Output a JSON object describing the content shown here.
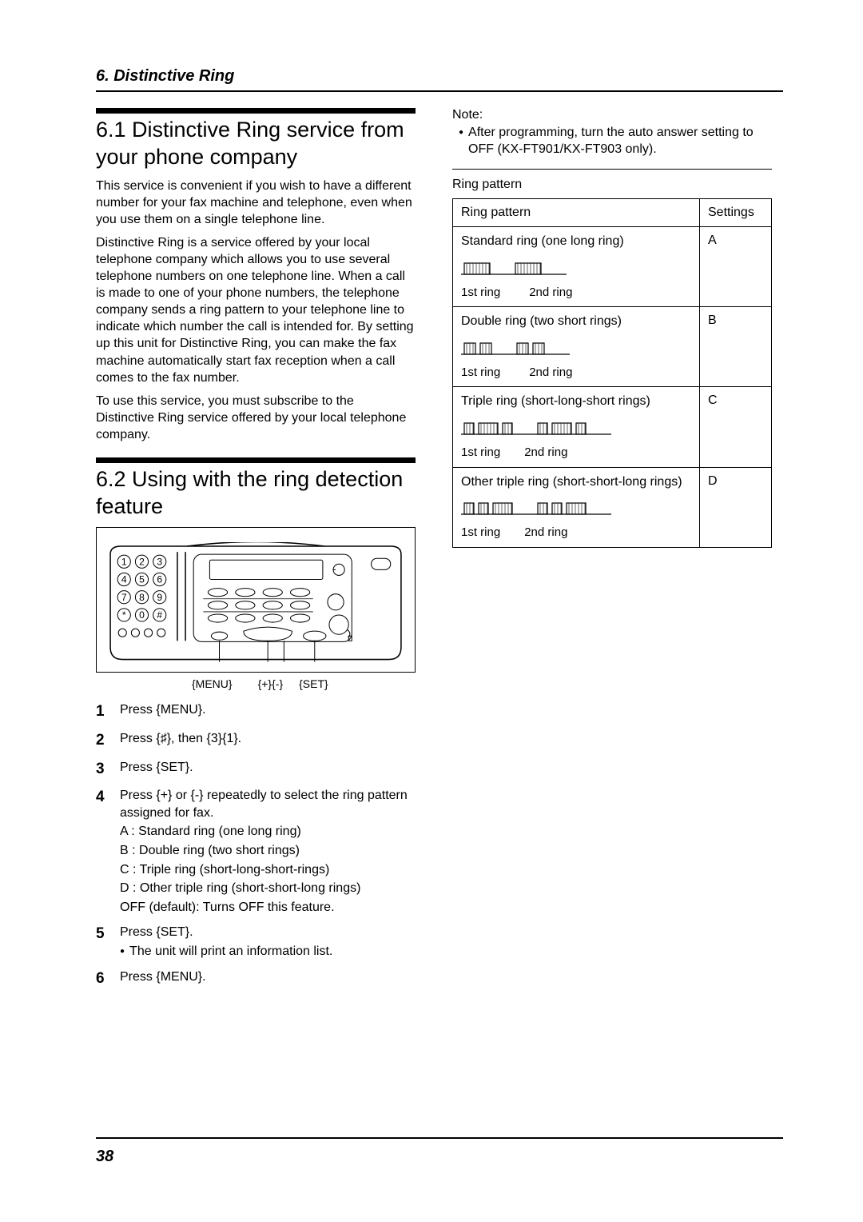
{
  "chapter_header": "6. Distinctive Ring",
  "page_number": "38",
  "section61": {
    "title": "6.1 Distinctive Ring service from your phone company",
    "p1": "This service is convenient if you wish to have a different number for your fax machine and telephone, even when you use them on a single telephone line.",
    "p2": "Distinctive Ring is a service offered by your local telephone company which allows you to use several telephone numbers on one telephone line. When a call is made to one of your phone numbers, the telephone company sends a ring pattern to your telephone line to indicate which number the call is intended for. By setting up this unit for Distinctive Ring, you can make the fax machine automatically start fax reception when a call comes to the fax number.",
    "p3": "To use this service, you must subscribe to the Distinctive Ring service offered by your local telephone company."
  },
  "section62": {
    "title": "6.2 Using with the ring detection feature",
    "labels": {
      "menu": "{MENU}",
      "plusminus": "{+}{-}",
      "set": "{SET}"
    },
    "steps": [
      {
        "n": "1",
        "text": "Press {MENU}."
      },
      {
        "n": "2",
        "text": "Press {♯}, then {3}{1}."
      },
      {
        "n": "3",
        "text": "Press {SET}."
      },
      {
        "n": "4",
        "text": "Press {+} or {-} repeatedly to select the ring pattern assigned for fax.",
        "subs": [
          "A : Standard ring (one long ring)",
          "B : Double ring (two short rings)",
          "C : Triple ring (short-long-short-rings)",
          "D : Other triple ring (short-short-long rings)",
          "OFF (default): Turns OFF this feature."
        ]
      },
      {
        "n": "5",
        "text": "Press {SET}.",
        "bullet": "The unit will print an information list."
      },
      {
        "n": "6",
        "text": "Press {MENU}."
      }
    ]
  },
  "note": {
    "label": "Note:",
    "text": "After programming, turn the auto answer setting to OFF (KX-FT901/KX-FT903 only)."
  },
  "ring_table": {
    "caption": "Ring pattern",
    "columns": [
      "Ring pattern",
      "Settings"
    ],
    "rows": [
      {
        "desc": "Standard ring (one long ring)",
        "setting": "A",
        "pattern_widths": [
          [
            32
          ],
          [
            32
          ]
        ],
        "label1": "1st ring",
        "label2": "2nd ring"
      },
      {
        "desc": "Double ring (two short rings)",
        "setting": "B",
        "pattern_widths": [
          [
            14,
            14
          ],
          [
            14,
            14
          ]
        ],
        "label1": "1st ring",
        "label2": "2nd ring"
      },
      {
        "desc": "Triple ring (short-long-short rings)",
        "setting": "C",
        "pattern_widths": [
          [
            12,
            24,
            12
          ],
          [
            12,
            24,
            12
          ]
        ],
        "label1": "1st ring",
        "label2": "2nd ring"
      },
      {
        "desc": "Other triple ring (short-short-long rings)",
        "setting": "D",
        "pattern_widths": [
          [
            12,
            12,
            24
          ],
          [
            12,
            12,
            24
          ]
        ],
        "label1": "1st ring",
        "label2": "2nd ring"
      }
    ]
  }
}
